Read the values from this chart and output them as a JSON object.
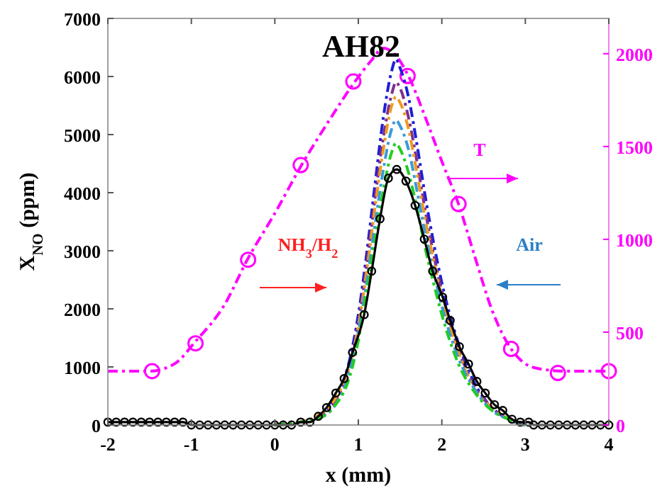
{
  "chart_data": {
    "type": "line",
    "title": "AH82",
    "xlabel": "x (mm)",
    "ylabel": "X$_{NO}$ (ppm)",
    "xlim": [
      -2,
      4
    ],
    "xticks": [
      -2,
      -1,
      0,
      1,
      2,
      3,
      4
    ],
    "ylim": [
      0,
      7000
    ],
    "yticks": [
      0,
      1000,
      2000,
      3000,
      4000,
      5000,
      6000,
      7000
    ],
    "y2lim": [
      0,
      2190
    ],
    "y2ticks": [
      0,
      500,
      1000,
      1500,
      2000
    ],
    "annotations": [
      "NH$_{3}$/H$_{2}$",
      "Air",
      "T"
    ],
    "series": [
      {
        "axis": "y2",
        "color": "#ff00ff",
        "line_style": "dashed",
        "marker": "none",
        "x": [
          -2,
          -1.5,
          -1.2,
          -0.95,
          -0.6,
          -0.33,
          0,
          0.32,
          0.65,
          0.96,
          1.15,
          1.3,
          1.45,
          1.6,
          1.8,
          2.0,
          2.2,
          2.4,
          2.6,
          2.83,
          3.0,
          3.2,
          3.5,
          4
        ],
        "values": [
          290,
          290,
          330,
          450,
          650,
          890,
          1140,
          1400,
          1640,
          1850,
          1960,
          2030,
          1990,
          1880,
          1660,
          1420,
          1190,
          900,
          620,
          410,
          330,
          300,
          290,
          290
        ]
      },
      {
        "type": "scatter",
        "axis": "y2",
        "color": "#ff00ff",
        "marker": "circle",
        "x": [
          -1.47,
          -0.95,
          -0.32,
          0.31,
          0.94,
          1.59,
          2.2,
          2.83,
          3.39,
          4
        ],
        "values": [
          290,
          440,
          890,
          1400,
          1850,
          1880,
          1190,
          410,
          280,
          290
        ]
      },
      {
        "color": "#1f1fd6",
        "line_style": "dashed",
        "marker": "none",
        "x": [
          0,
          0.3,
          0.5,
          0.7,
          0.9,
          1.0,
          1.1,
          1.2,
          1.3,
          1.4,
          1.45,
          1.5,
          1.6,
          1.7,
          1.8,
          1.9,
          2.0,
          2.2,
          2.4,
          2.6,
          2.8,
          3.0
        ],
        "values": [
          0,
          50,
          100,
          400,
          1150,
          1900,
          2950,
          4150,
          5300,
          6100,
          6300,
          6150,
          5650,
          4850,
          3950,
          3150,
          2450,
          1400,
          700,
          300,
          100,
          0
        ]
      },
      {
        "color": "#7e2f8e",
        "line_style": "dashed",
        "marker": "none",
        "x": [
          0,
          0.3,
          0.5,
          0.7,
          0.9,
          1.0,
          1.1,
          1.2,
          1.3,
          1.4,
          1.45,
          1.5,
          1.6,
          1.7,
          1.8,
          1.9,
          2.0,
          2.2,
          2.4,
          2.6,
          2.8,
          3.0
        ],
        "values": [
          0,
          50,
          100,
          350,
          1050,
          1750,
          2750,
          3900,
          4950,
          5700,
          5900,
          5800,
          5300,
          4550,
          3700,
          2950,
          2300,
          1300,
          650,
          300,
          100,
          0
        ]
      },
      {
        "color": "#ee9a20",
        "line_style": "dashed",
        "marker": "none",
        "x": [
          0,
          0.3,
          0.5,
          0.7,
          0.9,
          1.0,
          1.1,
          1.2,
          1.3,
          1.4,
          1.45,
          1.5,
          1.6,
          1.7,
          1.8,
          1.9,
          2.0,
          2.2,
          2.4,
          2.6,
          2.8,
          3.0
        ],
        "values": [
          0,
          50,
          150,
          400,
          1050,
          1700,
          2650,
          3750,
          4750,
          5500,
          5650,
          5550,
          5100,
          4350,
          3550,
          2850,
          2200,
          1250,
          600,
          300,
          100,
          0
        ]
      },
      {
        "color": "#3a9ad9",
        "line_style": "dashed",
        "marker": "none",
        "x": [
          0.5,
          0.7,
          0.9,
          1.0,
          1.1,
          1.2,
          1.3,
          1.4,
          1.45,
          1.5,
          1.6,
          1.7,
          1.8,
          1.9,
          2.0,
          2.2,
          2.4,
          2.6,
          2.8,
          3.0
        ],
        "values": [
          100,
          300,
          950,
          1600,
          2450,
          3450,
          4400,
          5100,
          5250,
          5150,
          4750,
          4050,
          3300,
          2650,
          2050,
          1150,
          600,
          250,
          100,
          0
        ]
      },
      {
        "color": "#22cc22",
        "line_style": "dashed",
        "marker": "none",
        "x": [
          0,
          0.3,
          0.5,
          0.7,
          0.9,
          1.0,
          1.1,
          1.2,
          1.3,
          1.4,
          1.45,
          1.5,
          1.6,
          1.7,
          1.8,
          1.9,
          2.0,
          2.2,
          2.4,
          2.6,
          2.8,
          3.0
        ],
        "values": [
          0,
          50,
          100,
          300,
          850,
          1450,
          2300,
          3200,
          4050,
          4700,
          4850,
          4750,
          4350,
          3750,
          3050,
          2450,
          1900,
          1050,
          550,
          250,
          100,
          0
        ]
      },
      {
        "color": "#000000",
        "line_style": "solid",
        "marker": "circle",
        "x": [
          -2,
          -1.9,
          -1.8,
          -1.7,
          -1.6,
          -1.5,
          -1.4,
          -1.3,
          -1.2,
          -1.1,
          -1.0,
          -0.9,
          -0.8,
          -0.7,
          -0.6,
          -0.5,
          -0.4,
          -0.3,
          -0.2,
          -0.1,
          0,
          0.1,
          0.2,
          0.31,
          0.42,
          0.52,
          0.62,
          0.73,
          0.83,
          0.93,
          1.07,
          1.16,
          1.26,
          1.36,
          1.46,
          1.57,
          1.68,
          1.79,
          1.89,
          2.01,
          2.1,
          2.21,
          2.32,
          2.42,
          2.52,
          2.63,
          2.73,
          2.84,
          2.94,
          3.04,
          3.1,
          3.2,
          3.3,
          3.4,
          3.5,
          3.6,
          3.7,
          3.8,
          3.9,
          4.0
        ],
        "values": [
          50,
          50,
          50,
          50,
          50,
          50,
          50,
          50,
          50,
          50,
          0,
          0,
          0,
          0,
          0,
          0,
          0,
          0,
          0,
          0,
          0,
          0,
          0,
          50,
          50,
          150,
          300,
          550,
          800,
          1250,
          1900,
          2650,
          3550,
          4250,
          4400,
          4200,
          3780,
          3200,
          2650,
          2200,
          1800,
          1350,
          1050,
          750,
          550,
          350,
          250,
          100,
          50,
          50,
          0,
          0,
          0,
          0,
          0,
          0,
          0,
          0,
          0,
          0
        ]
      }
    ]
  }
}
